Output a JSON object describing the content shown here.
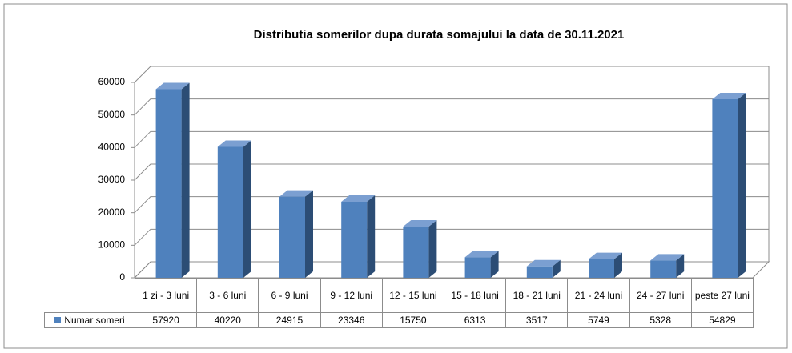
{
  "chart_data": {
    "type": "bar3d",
    "title": "Distributia somerilor dupa durata somajului la data de 30.11.2021",
    "categories": [
      "1 zi - 3 luni",
      "3 - 6 luni",
      "6 - 9 luni",
      "9 - 12 luni",
      "12 - 15 luni",
      "15 - 18 luni",
      "18 - 21 luni",
      "21 - 24 luni",
      "24 - 27 luni",
      "peste 27 luni"
    ],
    "series": [
      {
        "name": "Numar someri",
        "color": "#4f81bd",
        "values": [
          57920,
          40220,
          24915,
          23346,
          15750,
          6313,
          3517,
          5749,
          5328,
          54829
        ]
      }
    ],
    "ylim": [
      0,
      60000
    ],
    "yticks": [
      0,
      10000,
      20000,
      30000,
      40000,
      50000,
      60000
    ],
    "grid": true
  }
}
